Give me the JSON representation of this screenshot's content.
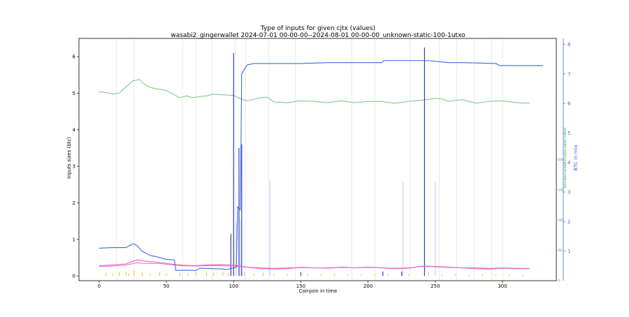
{
  "chart_data": {
    "type": "line",
    "title": "Type of inputs for given cjtx (values)",
    "subtitle": "wasabi2_gingerwallet 2024-07-01 00-00-00--2024-08-01 00-00-00_unknown-static-100-1utxo",
    "xlabel": "Coinjoin in time",
    "ylabel": "Inputs sizes (btc)",
    "ylabel_right_green": "Estimated number of active wallets (count)",
    "ylabel_right_blue": "BTC in mix",
    "grid": "vertical lines only",
    "xlim": [
      -15,
      340
    ],
    "ylim": [
      -0.13,
      6.5
    ],
    "ylim_green": [
      0,
      400
    ],
    "ylim_blue": [
      0,
      8.2
    ],
    "x_ticks": [
      0,
      50,
      100,
      150,
      200,
      250,
      300
    ],
    "y_ticks": [
      0,
      1,
      2,
      3,
      4,
      5,
      6
    ],
    "green_ticks": [
      0,
      50,
      100,
      150,
      200
    ],
    "blue_ticks": [
      1,
      2,
      3,
      4,
      5,
      6,
      7,
      8
    ],
    "colors": {
      "btc_in_mix": "#4169e1",
      "active_wallets": "#77c377",
      "fresh_inputs": "#ff69b4",
      "remixed_inputs": "#da70d6",
      "spikes_blue": "#3040c8",
      "spikes_orange": "#ffa500",
      "gridline": "#dcdcdc"
    },
    "series": [
      {
        "key": "btc_in_mix",
        "axis": "blue",
        "points": [
          [
            0,
            1.1
          ],
          [
            10,
            1.12
          ],
          [
            20,
            1.12
          ],
          [
            25,
            1.25
          ],
          [
            28,
            1.2
          ],
          [
            32,
            1.0
          ],
          [
            38,
            0.85
          ],
          [
            42,
            0.82
          ],
          [
            50,
            0.72
          ],
          [
            56,
            0.7
          ],
          [
            57,
            0.35
          ],
          [
            72,
            0.35
          ],
          [
            75,
            0.42
          ],
          [
            90,
            0.4
          ],
          [
            95,
            0.38
          ],
          [
            102,
            0.45
          ],
          [
            103,
            2.5
          ],
          [
            105,
            2.4
          ],
          [
            106,
            7.0
          ],
          [
            110,
            7.3
          ],
          [
            115,
            7.35
          ],
          [
            150,
            7.35
          ],
          [
            170,
            7.38
          ],
          [
            210,
            7.38
          ],
          [
            212,
            7.45
          ],
          [
            245,
            7.45
          ],
          [
            255,
            7.4
          ],
          [
            260,
            7.38
          ],
          [
            270,
            7.38
          ],
          [
            295,
            7.35
          ],
          [
            298,
            7.28
          ],
          [
            330,
            7.28
          ]
        ]
      },
      {
        "key": "active_wallets",
        "axis": "green",
        "points": [
          [
            0,
            312
          ],
          [
            5,
            311
          ],
          [
            10,
            308
          ],
          [
            15,
            310
          ],
          [
            20,
            320
          ],
          [
            25,
            330
          ],
          [
            30,
            332
          ],
          [
            35,
            322
          ],
          [
            40,
            318
          ],
          [
            45,
            316
          ],
          [
            50,
            314
          ],
          [
            55,
            308
          ],
          [
            60,
            302
          ],
          [
            65,
            305
          ],
          [
            70,
            302
          ],
          [
            75,
            304
          ],
          [
            80,
            305
          ],
          [
            85,
            308
          ],
          [
            90,
            307
          ],
          [
            100,
            306
          ],
          [
            105,
            300
          ],
          [
            110,
            297
          ],
          [
            120,
            302
          ],
          [
            125,
            303
          ],
          [
            130,
            295
          ],
          [
            140,
            294
          ],
          [
            150,
            297
          ],
          [
            160,
            296
          ],
          [
            170,
            294
          ],
          [
            180,
            297
          ],
          [
            190,
            294
          ],
          [
            200,
            296
          ],
          [
            210,
            296
          ],
          [
            220,
            293
          ],
          [
            230,
            296
          ],
          [
            240,
            298
          ],
          [
            250,
            301
          ],
          [
            255,
            300
          ],
          [
            260,
            296
          ],
          [
            270,
            299
          ],
          [
            280,
            293
          ],
          [
            290,
            296
          ],
          [
            300,
            297
          ],
          [
            310,
            294
          ],
          [
            320,
            293
          ]
        ]
      },
      {
        "key": "fresh_inputs",
        "axis": "left",
        "points": [
          [
            0,
            0.28
          ],
          [
            10,
            0.3
          ],
          [
            20,
            0.33
          ],
          [
            28,
            0.44
          ],
          [
            35,
            0.4
          ],
          [
            45,
            0.37
          ],
          [
            55,
            0.32
          ],
          [
            60,
            0.3
          ],
          [
            70,
            0.28
          ],
          [
            80,
            0.3
          ],
          [
            90,
            0.31
          ],
          [
            100,
            0.3
          ],
          [
            110,
            0.24
          ],
          [
            120,
            0.2
          ],
          [
            130,
            0.19
          ],
          [
            140,
            0.2
          ],
          [
            150,
            0.24
          ],
          [
            160,
            0.22
          ],
          [
            170,
            0.21
          ],
          [
            180,
            0.24
          ],
          [
            190,
            0.22
          ],
          [
            200,
            0.24
          ],
          [
            210,
            0.22
          ],
          [
            220,
            0.2
          ],
          [
            230,
            0.21
          ],
          [
            240,
            0.27
          ],
          [
            250,
            0.26
          ],
          [
            260,
            0.24
          ],
          [
            270,
            0.22
          ],
          [
            280,
            0.2
          ],
          [
            290,
            0.19
          ],
          [
            300,
            0.21
          ],
          [
            310,
            0.2
          ],
          [
            320,
            0.2
          ]
        ]
      },
      {
        "key": "remixed_inputs",
        "axis": "left",
        "points": [
          [
            0,
            0.26
          ],
          [
            10,
            0.27
          ],
          [
            20,
            0.3
          ],
          [
            28,
            0.36
          ],
          [
            35,
            0.34
          ],
          [
            45,
            0.34
          ],
          [
            55,
            0.3
          ],
          [
            60,
            0.28
          ],
          [
            70,
            0.27
          ],
          [
            80,
            0.28
          ],
          [
            90,
            0.28
          ],
          [
            100,
            0.27
          ],
          [
            110,
            0.24
          ],
          [
            120,
            0.22
          ],
          [
            130,
            0.21
          ],
          [
            140,
            0.22
          ],
          [
            150,
            0.23
          ],
          [
            160,
            0.22
          ],
          [
            170,
            0.22
          ],
          [
            180,
            0.23
          ],
          [
            190,
            0.22
          ],
          [
            200,
            0.23
          ],
          [
            210,
            0.22
          ],
          [
            220,
            0.21
          ],
          [
            230,
            0.22
          ],
          [
            240,
            0.26
          ],
          [
            250,
            0.25
          ],
          [
            260,
            0.23
          ],
          [
            270,
            0.22
          ],
          [
            280,
            0.22
          ],
          [
            290,
            0.21
          ],
          [
            300,
            0.22
          ],
          [
            310,
            0.21
          ],
          [
            320,
            0.21
          ]
        ]
      }
    ],
    "spikes_blue": [
      [
        100,
        6.1
      ],
      [
        104,
        3.5
      ],
      [
        242,
        6.25
      ],
      [
        98,
        1.15
      ],
      [
        106,
        3.6
      ],
      [
        225,
        0.12
      ],
      [
        150,
        0.1
      ],
      [
        211,
        0.12
      ]
    ],
    "spikes_faint": [
      [
        127,
        2.6
      ],
      [
        226,
        2.58
      ],
      [
        250,
        2.58
      ],
      [
        105,
        1.55
      ],
      [
        102,
        1.45
      ]
    ],
    "spikes_orange": [
      [
        5,
        0.08
      ],
      [
        10,
        0.06
      ],
      [
        15,
        0.1
      ],
      [
        20,
        0.12
      ],
      [
        22,
        0.07
      ],
      [
        26,
        0.15
      ],
      [
        32,
        0.09
      ],
      [
        38,
        0.07
      ],
      [
        45,
        0.1
      ],
      [
        50,
        0.06
      ],
      [
        60,
        0.08
      ],
      [
        66,
        0.07
      ],
      [
        72,
        0.12
      ],
      [
        80,
        0.1
      ],
      [
        85,
        0.09
      ],
      [
        92,
        0.12
      ],
      [
        96,
        0.08
      ],
      [
        108,
        0.1
      ],
      [
        115,
        0.07
      ],
      [
        122,
        0.09
      ],
      [
        130,
        0.06
      ],
      [
        140,
        0.05
      ],
      [
        155,
        0.06
      ],
      [
        165,
        0.05
      ],
      [
        175,
        0.06
      ],
      [
        185,
        0.04
      ],
      [
        195,
        0.05
      ],
      [
        205,
        0.04
      ],
      [
        215,
        0.05
      ],
      [
        230,
        0.04
      ],
      [
        245,
        0.1
      ],
      [
        255,
        0.04
      ],
      [
        265,
        0.05
      ],
      [
        275,
        0.04
      ],
      [
        285,
        0.05
      ],
      [
        295,
        0.04
      ],
      [
        305,
        0.05
      ],
      [
        315,
        0.04
      ]
    ],
    "vertical_grid_x": [
      13,
      26,
      62,
      72,
      84,
      101,
      109,
      126,
      146,
      188,
      205,
      231,
      253,
      266,
      279,
      292,
      300
    ]
  }
}
